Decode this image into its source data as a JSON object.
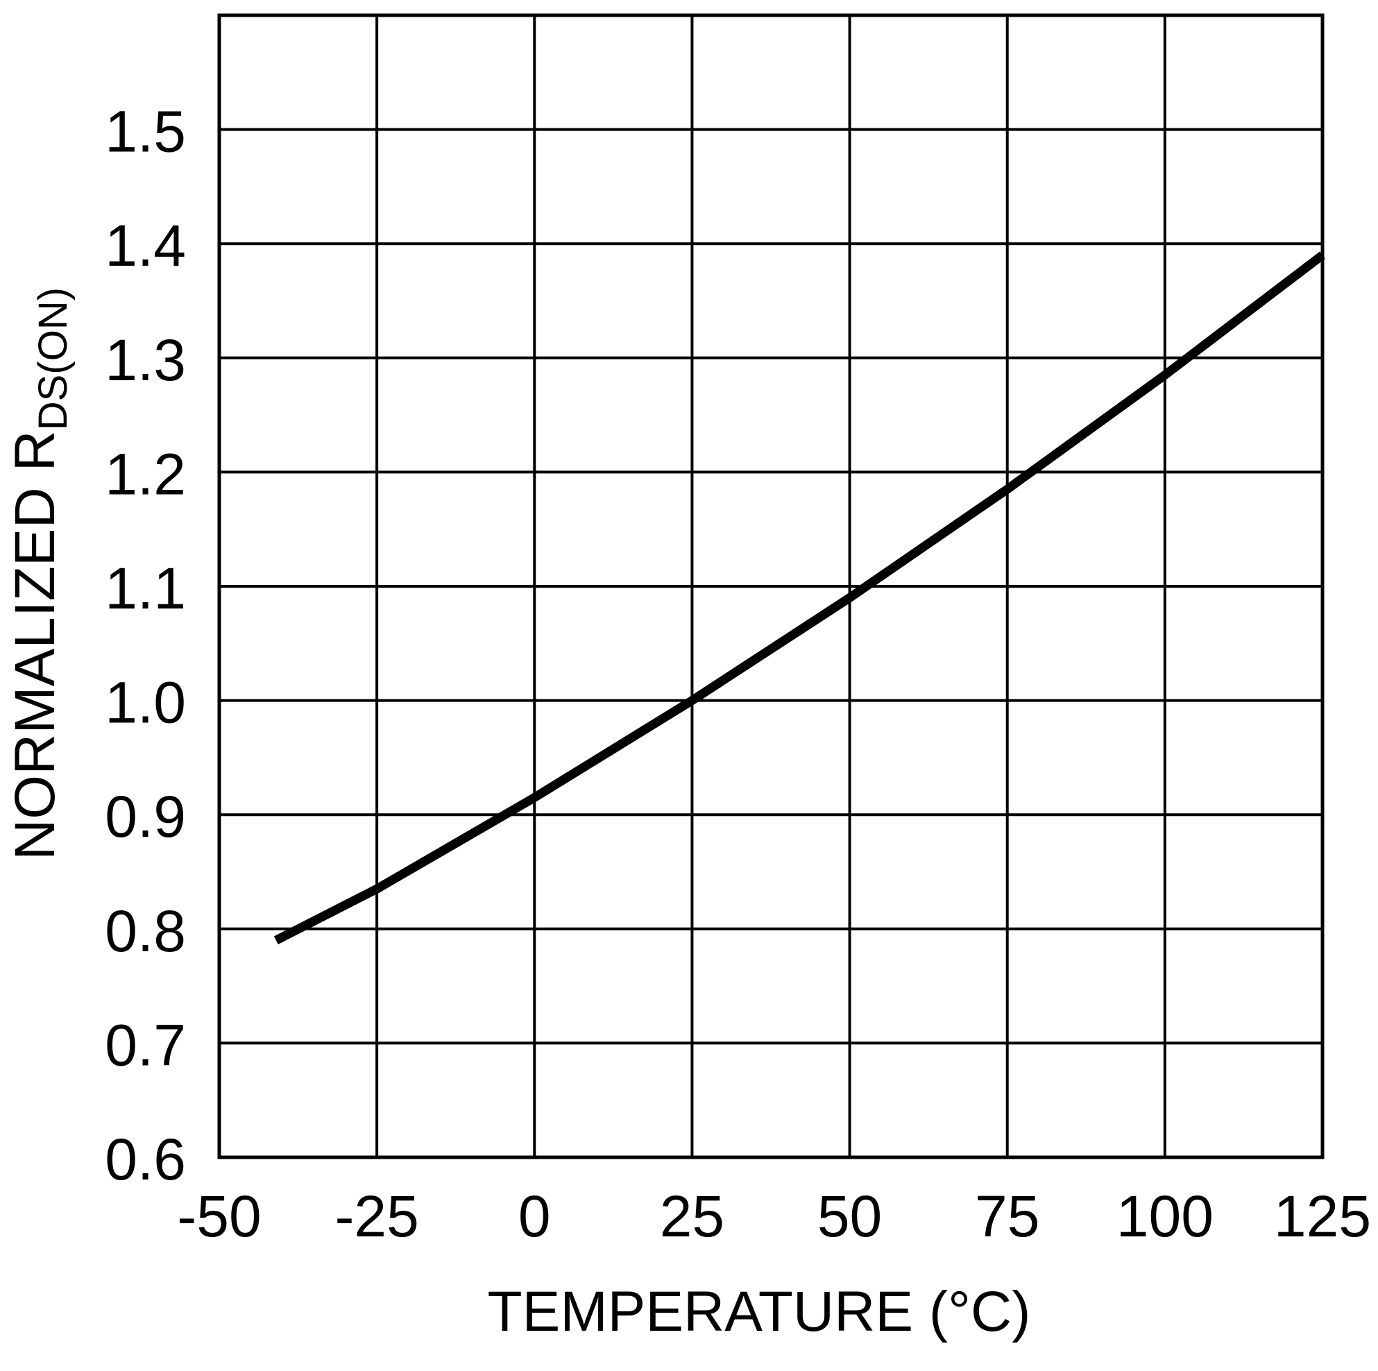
{
  "chart_data": {
    "type": "line",
    "title": "",
    "xlabel": "TEMPERATURE (°C)",
    "ylabel": {
      "main": "NORMALIZED R",
      "subscript": "DS(ON)"
    },
    "xlim": [
      -50,
      125
    ],
    "ylim": [
      0.6,
      1.6
    ],
    "x_ticks": [
      -50,
      -25,
      0,
      25,
      50,
      75,
      100,
      125
    ],
    "x_tick_labels": [
      "-50",
      "-25",
      "0",
      "25",
      "50",
      "75",
      "100",
      "125"
    ],
    "y_ticks": [
      0.6,
      0.7,
      0.8,
      0.9,
      1.0,
      1.1,
      1.2,
      1.3,
      1.4,
      1.5,
      1.6
    ],
    "y_tick_labels": [
      "0.6",
      "0.7",
      "0.8",
      "0.9",
      "1.0",
      "1.1",
      "1.2",
      "1.3",
      "1.4",
      "1.5",
      ""
    ],
    "grid": true,
    "legend": "none",
    "colors": {
      "line": "#000000",
      "grid": "#000000",
      "background": "#ffffff"
    },
    "series": [
      {
        "x": [
          -41,
          -25,
          0,
          25,
          50,
          75,
          100,
          125
        ],
        "y": [
          0.79,
          0.835,
          0.915,
          1.0,
          1.09,
          1.185,
          1.285,
          1.39
        ]
      }
    ]
  }
}
